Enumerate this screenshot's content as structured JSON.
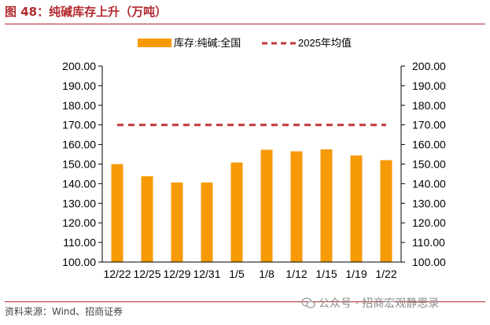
{
  "header": {
    "figure_title": "图 48：纯碱库存上升（万吨）"
  },
  "footer": {
    "source": "资料来源：Wind、招商证券",
    "watermark": "公众号 · 招商宏观静思录"
  },
  "chart_data": {
    "type": "bar",
    "title": "",
    "categories": [
      "12/22",
      "12/25",
      "12/29",
      "12/31",
      "1/5",
      "1/8",
      "1/12",
      "1/15",
      "1/19",
      "1/22"
    ],
    "series": [
      {
        "name": "库存:纯碱:全国",
        "type": "bar",
        "color": "#F79A08",
        "values": [
          150.0,
          143.8,
          140.6,
          140.6,
          150.8,
          157.3,
          156.5,
          157.5,
          154.4,
          152.0
        ]
      },
      {
        "name": "2025年均值",
        "type": "line",
        "style": "dashed",
        "color": "#C0393B",
        "values": [
          170.0,
          170.0,
          170.0,
          170.0,
          170.0,
          170.0,
          170.0,
          170.0,
          170.0,
          170.0
        ]
      }
    ],
    "y_ticks": [
      "100.00",
      "110.00",
      "120.00",
      "130.00",
      "140.00",
      "150.00",
      "160.00",
      "170.00",
      "180.00",
      "190.00",
      "200.00"
    ],
    "y_right_ticks": [
      "100.00",
      "110.00",
      "120.00",
      "130.00",
      "140.00",
      "150.00",
      "160.00",
      "170.00",
      "180.00",
      "190.00",
      "200.00"
    ],
    "ylim": [
      100,
      200
    ],
    "xlabel": "",
    "ylabel": "",
    "legend_position": "top-center",
    "grid": false
  }
}
